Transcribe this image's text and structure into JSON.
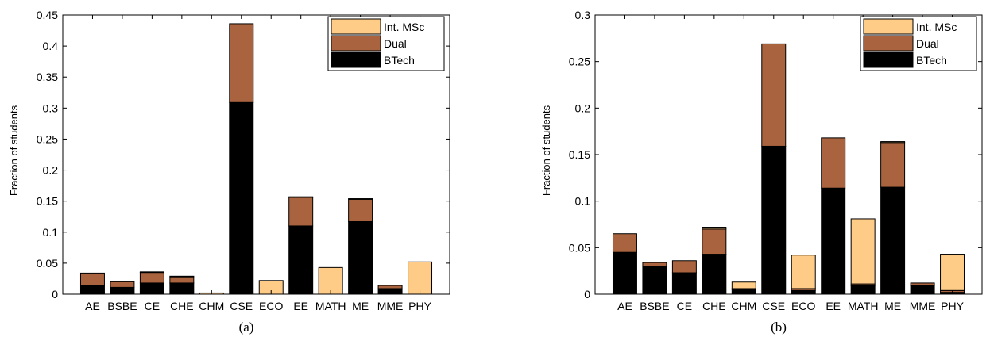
{
  "colors": {
    "BTech": "#000000",
    "Dual": "#a9643f",
    "Int. MSc": "#ffcc88"
  },
  "chart_data": [
    {
      "type": "bar",
      "stacked": true,
      "caption": "(a)",
      "ylabel": "Fraction of students",
      "ylim": [
        0,
        0.45
      ],
      "yticks": [
        0,
        0.05,
        0.1,
        0.15,
        0.2,
        0.25,
        0.3,
        0.35,
        0.4,
        0.45
      ],
      "ytick_labels": [
        "0",
        "0.05",
        "0.1",
        "0.15",
        "0.2",
        "0.25",
        "0.3",
        "0.35",
        "0.4",
        "0.45"
      ],
      "categories": [
        "AE",
        "BSBE",
        "CE",
        "CHE",
        "CHM",
        "CSE",
        "ECO",
        "EE",
        "MATH",
        "ME",
        "MME",
        "PHY"
      ],
      "legend_position": "top-right",
      "legend": [
        "Int. MSc",
        "Dual",
        "BTech"
      ],
      "series": [
        {
          "name": "BTech",
          "values": [
            0.014,
            0.011,
            0.018,
            0.018,
            0.0,
            0.309,
            0.0,
            0.11,
            0.0,
            0.117,
            0.009,
            0.0
          ]
        },
        {
          "name": "Dual",
          "values": [
            0.02,
            0.009,
            0.017,
            0.01,
            0.0,
            0.127,
            0.0,
            0.046,
            0.0,
            0.036,
            0.005,
            0.0
          ]
        },
        {
          "name": "Int. MSc",
          "values": [
            0.0,
            0.0,
            0.001,
            0.001,
            0.002,
            0.0,
            0.022,
            0.001,
            0.043,
            0.001,
            0.0,
            0.052
          ]
        }
      ]
    },
    {
      "type": "bar",
      "stacked": true,
      "caption": "(b)",
      "ylabel": "Fraction of students",
      "ylim": [
        0,
        0.3
      ],
      "yticks": [
        0,
        0.05,
        0.1,
        0.15,
        0.2,
        0.25,
        0.3
      ],
      "ytick_labels": [
        "0",
        "0.05",
        "0.1",
        "0.15",
        "0.2",
        "0.25",
        "0.3"
      ],
      "categories": [
        "AE",
        "BSBE",
        "CE",
        "CHE",
        "CHM",
        "CSE",
        "ECO",
        "EE",
        "MATH",
        "ME",
        "MME",
        "PHY"
      ],
      "legend_position": "top-right",
      "legend": [
        "Int. MSc",
        "Dual",
        "BTech"
      ],
      "series": [
        {
          "name": "BTech",
          "values": [
            0.045,
            0.03,
            0.023,
            0.043,
            0.005,
            0.159,
            0.004,
            0.114,
            0.009,
            0.115,
            0.009,
            0.002
          ]
        },
        {
          "name": "Dual",
          "values": [
            0.02,
            0.004,
            0.013,
            0.027,
            0.001,
            0.11,
            0.002,
            0.054,
            0.002,
            0.048,
            0.003,
            0.002
          ]
        },
        {
          "name": "Int. MSc",
          "values": [
            0.0,
            0.0,
            0.0,
            0.002,
            0.007,
            0.0,
            0.036,
            0.0,
            0.07,
            0.001,
            0.0,
            0.039
          ]
        }
      ]
    }
  ]
}
